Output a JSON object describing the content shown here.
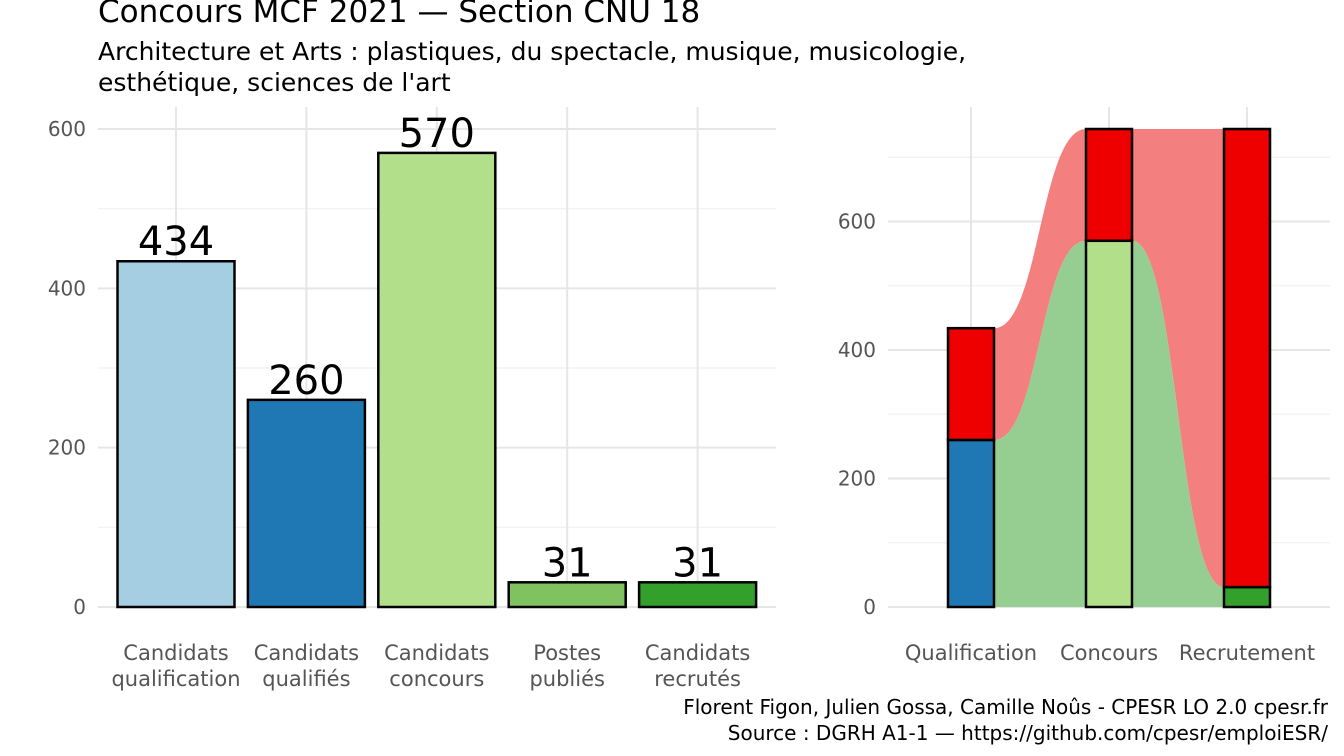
{
  "title": "Concours MCF  2021  —  Section CNU 18",
  "subtitle_line1": "Architecture et Arts : plastiques, du spectacle, musique, musicologie,",
  "subtitle_line2": "esthétique, sciences de l'art",
  "caption_line1": "Florent Figon, Julien Gossa, Camille Noûs - CPESR LO 2.0 cpesr.fr",
  "caption_line2": "Source : DGRH A1-1 — https://github.com/cpesr/emploiESR/",
  "chart_data": [
    {
      "type": "bar",
      "categories": [
        [
          "Candidats",
          "qualification"
        ],
        [
          "Candidats",
          "qualifiés"
        ],
        [
          "Candidats",
          "concours"
        ],
        [
          "Postes",
          "publiés"
        ],
        [
          "Candidats",
          "recrutés"
        ]
      ],
      "values": [
        434,
        260,
        570,
        31,
        31
      ],
      "value_labels": [
        "434",
        "260",
        "570",
        "31",
        "31"
      ],
      "colors": [
        "#a6cee3",
        "#1f78b4",
        "#b2df8a",
        "#7fc25f",
        "#33a02c"
      ],
      "ylim": [
        0,
        600
      ],
      "yticks": [
        0,
        200,
        400,
        600
      ],
      "grid": true
    },
    {
      "type": "bar",
      "categories": [
        "Qualification",
        "Concours",
        "Recrutement"
      ],
      "series": [
        {
          "values": [
            260,
            570,
            31
          ],
          "colors": [
            "#1f78b4",
            "#b2df8a",
            "#33a02c"
          ]
        },
        {
          "values": [
            174,
            174,
            713
          ],
          "colors": [
            "#ee0000",
            "#ee0000",
            "#ee0000"
          ]
        }
      ],
      "flow_colors": {
        "success": "#96cd91",
        "failure": "#f47f7f"
      },
      "ylim": [
        0,
        744
      ],
      "yticks": [
        0,
        200,
        400,
        600
      ],
      "grid": true
    }
  ]
}
